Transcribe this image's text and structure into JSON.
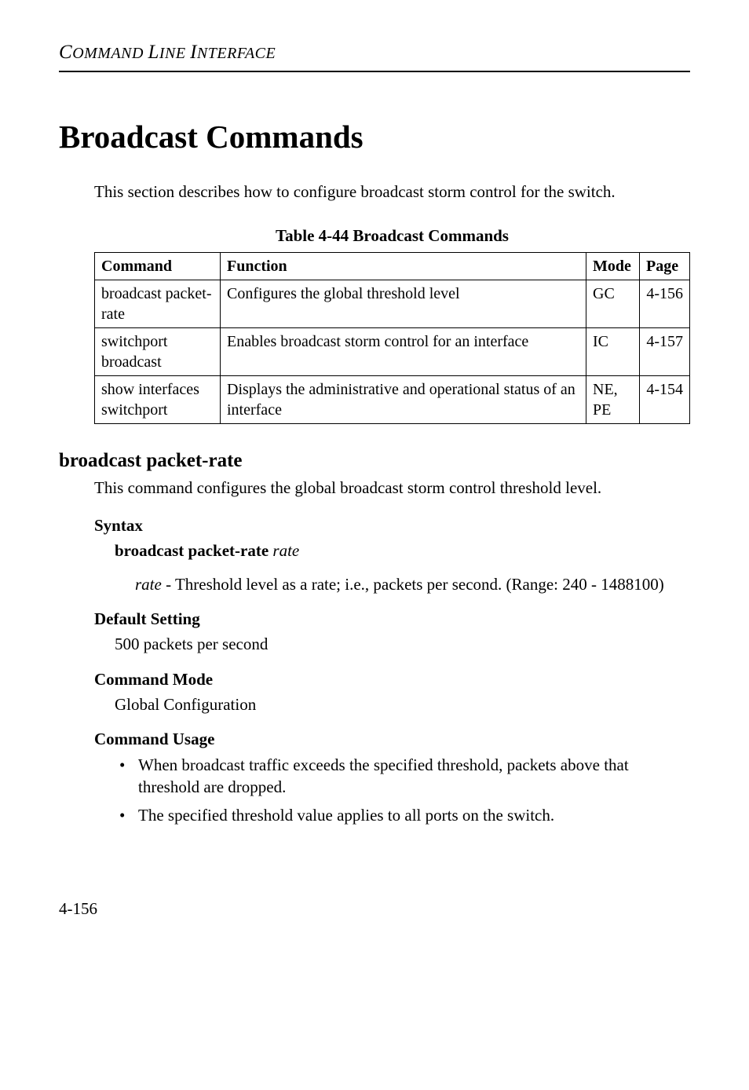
{
  "header": {
    "running_text_html": "<span class='caps'>C</span>OMMAND <span class='caps'>L</span>INE <span class='caps'>I</span>NTERFACE"
  },
  "title": "Broadcast Commands",
  "intro": "This section describes how to configure broadcast storm control for the switch.",
  "table": {
    "caption": "Table 4-44  Broadcast Commands",
    "columns": [
      "Command",
      "Function",
      "Mode",
      "Page"
    ],
    "rows": [
      {
        "command": "broadcast packet-rate",
        "function": "Configures the global threshold level",
        "mode": "GC",
        "page": "4-156"
      },
      {
        "command": "switchport broadcast",
        "function": "Enables broadcast storm control for an interface",
        "mode": "IC",
        "page": "4-157"
      },
      {
        "command": "show interfaces switchport",
        "function": "Displays the administrative and operational status of an interface",
        "mode": "NE, PE",
        "page": "4-154"
      }
    ]
  },
  "section": {
    "heading": "broadcast packet-rate",
    "description": "This command configures the global broadcast storm control threshold level.",
    "syntax": {
      "label": "Syntax",
      "command_prefix": "broadcast packet-rate",
      "command_arg": "rate",
      "param_name": "rate",
      "param_desc": " - Threshold level as a rate; i.e., packets per second. (Range: 240 - 1488100)"
    },
    "default_setting": {
      "label": "Default Setting",
      "value": "500 packets per second"
    },
    "command_mode": {
      "label": "Command Mode",
      "value": "Global Configuration"
    },
    "command_usage": {
      "label": "Command Usage",
      "items": [
        "When broadcast traffic exceeds the specified threshold, packets above that threshold are dropped.",
        "The specified threshold value applies to all ports on the switch."
      ]
    }
  },
  "page_number": "4-156"
}
